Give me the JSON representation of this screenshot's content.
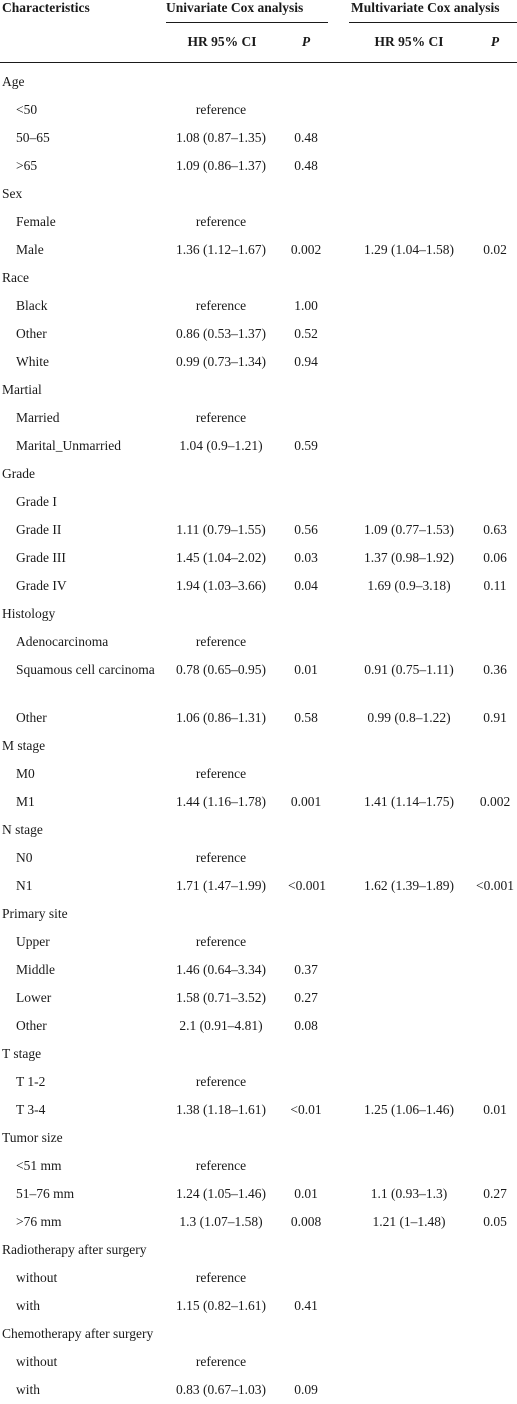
{
  "headers": {
    "characteristics": "Characteristics",
    "univariate": "Univariate Cox analysis",
    "multivariate": "Multivariate Cox analysis",
    "u_hr": "HR 95% CI",
    "u_p": "P",
    "m_hr": "HR 95% CI",
    "m_p": "P"
  },
  "rows": [
    {
      "label": "Age",
      "indent": false,
      "uhr": "",
      "up": "",
      "mhr": "",
      "mp": ""
    },
    {
      "label": "<50",
      "indent": true,
      "uhr": "reference",
      "up": "",
      "mhr": "",
      "mp": ""
    },
    {
      "label": "50–65",
      "indent": true,
      "uhr": "1.08 (0.87–1.35)",
      "up": "0.48",
      "mhr": "",
      "mp": ""
    },
    {
      "label": ">65",
      "indent": true,
      "uhr": "1.09 (0.86–1.37)",
      "up": "0.48",
      "mhr": "",
      "mp": ""
    },
    {
      "label": "Sex",
      "indent": false,
      "uhr": "",
      "up": "",
      "mhr": "",
      "mp": ""
    },
    {
      "label": "Female",
      "indent": true,
      "uhr": "reference",
      "up": "",
      "mhr": "",
      "mp": ""
    },
    {
      "label": "Male",
      "indent": true,
      "uhr": "1.36 (1.12–1.67)",
      "up": "0.002",
      "mhr": "1.29 (1.04–1.58)",
      "mp": "0.02"
    },
    {
      "label": "Race",
      "indent": false,
      "uhr": "",
      "up": "",
      "mhr": "",
      "mp": ""
    },
    {
      "label": "Black",
      "indent": true,
      "uhr": "reference",
      "up": "1.00",
      "mhr": "",
      "mp": ""
    },
    {
      "label": "Other",
      "indent": true,
      "uhr": "0.86 (0.53–1.37)",
      "up": "0.52",
      "mhr": "",
      "mp": ""
    },
    {
      "label": "White",
      "indent": true,
      "uhr": "0.99 (0.73–1.34)",
      "up": "0.94",
      "mhr": "",
      "mp": ""
    },
    {
      "label": "Martial",
      "indent": false,
      "uhr": "",
      "up": "",
      "mhr": "",
      "mp": ""
    },
    {
      "label": "Married",
      "indent": true,
      "uhr": "reference",
      "up": "",
      "mhr": "",
      "mp": ""
    },
    {
      "label": "Marital_Unmarried",
      "indent": true,
      "uhr": "1.04 (0.9–1.21)",
      "up": "0.59",
      "mhr": "",
      "mp": ""
    },
    {
      "label": "Grade",
      "indent": false,
      "uhr": "",
      "up": "",
      "mhr": "",
      "mp": ""
    },
    {
      "label": "Grade I",
      "indent": true,
      "uhr": "",
      "up": "",
      "mhr": "",
      "mp": ""
    },
    {
      "label": "Grade II",
      "indent": true,
      "uhr": "1.11 (0.79–1.55)",
      "up": "0.56",
      "mhr": "1.09 (0.77–1.53)",
      "mp": "0.63"
    },
    {
      "label": "Grade III",
      "indent": true,
      "uhr": "1.45 (1.04–2.02)",
      "up": "0.03",
      "mhr": "1.37 (0.98–1.92)",
      "mp": "0.06"
    },
    {
      "label": "Grade IV",
      "indent": true,
      "uhr": "1.94 (1.03–3.66)",
      "up": "0.04",
      "mhr": "1.69 (0.9–3.18)",
      "mp": "0.11"
    },
    {
      "label": "Histology",
      "indent": false,
      "uhr": "",
      "up": "",
      "mhr": "",
      "mp": ""
    },
    {
      "label": "Adenocarcinoma",
      "indent": true,
      "uhr": "reference",
      "up": "",
      "mhr": "",
      "mp": ""
    },
    {
      "label": "Squamous cell carcinoma",
      "indent": true,
      "two": true,
      "uhr": "0.78 (0.65–0.95)",
      "up": "0.01",
      "mhr": "0.91 (0.75–1.11)",
      "mp": "0.36"
    },
    {
      "label": "Other",
      "indent": true,
      "uhr": "1.06 (0.86–1.31)",
      "up": "0.58",
      "mhr": "0.99 (0.8–1.22)",
      "mp": "0.91"
    },
    {
      "label": "M stage",
      "indent": false,
      "uhr": "",
      "up": "",
      "mhr": "",
      "mp": ""
    },
    {
      "label": "M0",
      "indent": true,
      "uhr": "reference",
      "up": "",
      "mhr": "",
      "mp": ""
    },
    {
      "label": "M1",
      "indent": true,
      "uhr": "1.44 (1.16–1.78)",
      "up": "0.001",
      "mhr": "1.41 (1.14–1.75)",
      "mp": "0.002"
    },
    {
      "label": "N stage",
      "indent": false,
      "uhr": "",
      "up": "",
      "mhr": "",
      "mp": ""
    },
    {
      "label": "N0",
      "indent": true,
      "uhr": "reference",
      "up": "",
      "mhr": "",
      "mp": ""
    },
    {
      "label": "N1",
      "indent": true,
      "uhr": "1.71 (1.47–1.99)",
      "up": "<0.001",
      "mhr": "1.62 (1.39–1.89)",
      "mp": "<0.001"
    },
    {
      "label": "Primary site",
      "indent": false,
      "uhr": "",
      "up": "",
      "mhr": "",
      "mp": ""
    },
    {
      "label": "Upper",
      "indent": true,
      "uhr": "reference",
      "up": "",
      "mhr": "",
      "mp": ""
    },
    {
      "label": "Middle",
      "indent": true,
      "uhr": "1.46 (0.64–3.34)",
      "up": "0.37",
      "mhr": "",
      "mp": ""
    },
    {
      "label": "Lower",
      "indent": true,
      "uhr": "1.58 (0.71–3.52)",
      "up": "0.27",
      "mhr": "",
      "mp": ""
    },
    {
      "label": "Other",
      "indent": true,
      "uhr": "2.1 (0.91–4.81)",
      "up": "0.08",
      "mhr": "",
      "mp": ""
    },
    {
      "label": "T stage",
      "indent": false,
      "uhr": "",
      "up": "",
      "mhr": "",
      "mp": ""
    },
    {
      "label": "T 1-2",
      "indent": true,
      "uhr": "reference",
      "up": "",
      "mhr": "",
      "mp": ""
    },
    {
      "label": "T 3-4",
      "indent": true,
      "uhr": "1.38 (1.18–1.61)",
      "up": "<0.01",
      "mhr": "1.25 (1.06–1.46)",
      "mp": "0.01"
    },
    {
      "label": "Tumor size",
      "indent": false,
      "uhr": "",
      "up": "",
      "mhr": "",
      "mp": ""
    },
    {
      "label": "<51 mm",
      "indent": true,
      "uhr": "reference",
      "up": "",
      "mhr": "",
      "mp": ""
    },
    {
      "label": "51–76 mm",
      "indent": true,
      "uhr": "1.24 (1.05–1.46)",
      "up": "0.01",
      "mhr": "1.1 (0.93–1.3)",
      "mp": "0.27"
    },
    {
      "label": ">76 mm",
      "indent": true,
      "uhr": "1.3 (1.07–1.58)",
      "up": "0.008",
      "mhr": "1.21 (1–1.48)",
      "mp": "0.05"
    },
    {
      "label": "Radiotherapy after surgery",
      "indent": false,
      "uhr": "",
      "up": "",
      "mhr": "",
      "mp": ""
    },
    {
      "label": "without",
      "indent": true,
      "uhr": "reference",
      "up": "",
      "mhr": "",
      "mp": ""
    },
    {
      "label": "with",
      "indent": true,
      "uhr": "1.15 (0.82–1.61)",
      "up": "0.41",
      "mhr": "",
      "mp": ""
    },
    {
      "label": "Chemotherapy after surgery",
      "indent": false,
      "uhr": "",
      "up": "",
      "mhr": "",
      "mp": ""
    },
    {
      "label": "without",
      "indent": true,
      "uhr": "reference",
      "up": "",
      "mhr": "",
      "mp": ""
    },
    {
      "label": "with",
      "indent": true,
      "uhr": "0.83 (0.67–1.03)",
      "up": "0.09",
      "mhr": "",
      "mp": ""
    }
  ]
}
